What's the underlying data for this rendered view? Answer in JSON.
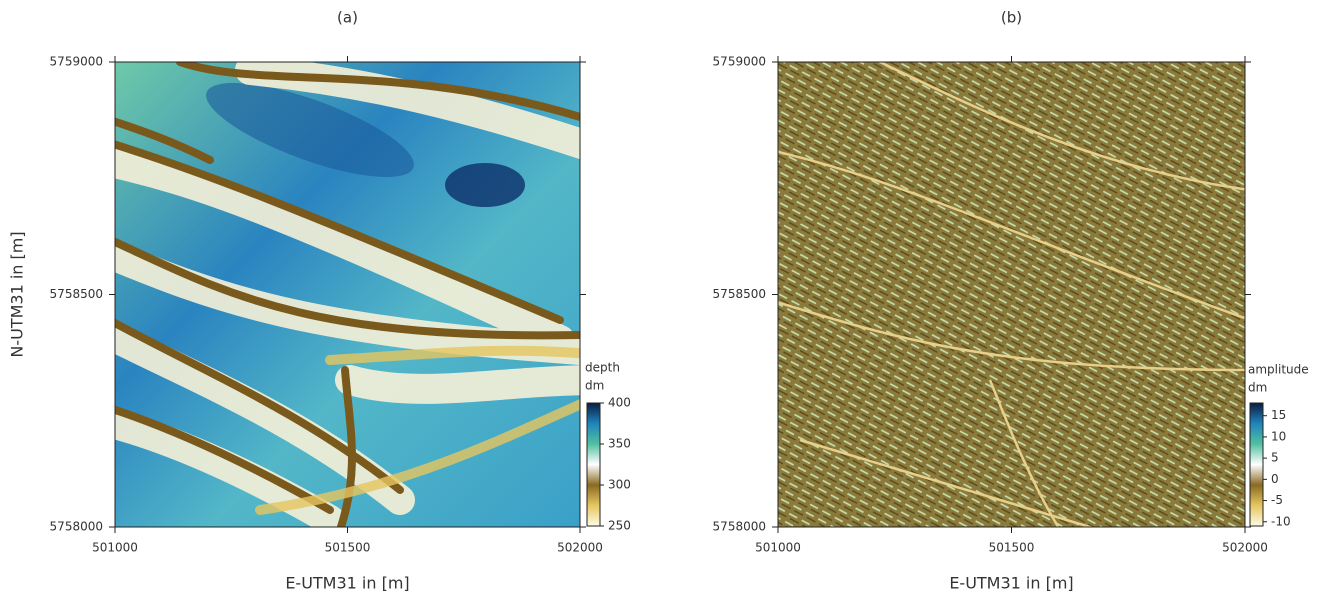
{
  "chart_data": [
    {
      "type": "map",
      "title": "(a)",
      "x_label": "E-UTM31 in [m]",
      "y_label": "N-UTM31 in [m]",
      "xlim": [
        501000,
        502000
      ],
      "ylim": [
        5758000,
        5759000
      ],
      "xticks": [
        501000,
        501500,
        502000
      ],
      "yticks": [
        5758000,
        5758500,
        5759000
      ],
      "colorbar": {
        "title": "depth",
        "unit": "dm",
        "lim": [
          250,
          400
        ],
        "ticks": [
          250,
          300,
          350,
          400
        ],
        "colors": [
          "#fffbe6",
          "#e6c660",
          "#8a6a22",
          "#ffffff",
          "#52c0a0",
          "#1f84bc",
          "#0b1c40"
        ]
      }
    },
    {
      "type": "map",
      "title": "(b)",
      "x_label": "E-UTM31 in [m]",
      "xlim": [
        501000,
        502000
      ],
      "ylim": [
        5758000,
        5759000
      ],
      "xticks": [
        501000,
        501500,
        502000
      ],
      "yticks": [
        5758000,
        5758500,
        5759000
      ],
      "colorbar": {
        "title": "amplitude",
        "unit": "dm",
        "lim": [
          -11,
          18
        ],
        "ticks": [
          -10,
          -5,
          0,
          5,
          10,
          15
        ],
        "colors": [
          "#fffbe6",
          "#e6c660",
          "#8a6a22",
          "#ffffff",
          "#52c0a0",
          "#1f84bc",
          "#0b1c40"
        ]
      }
    }
  ]
}
